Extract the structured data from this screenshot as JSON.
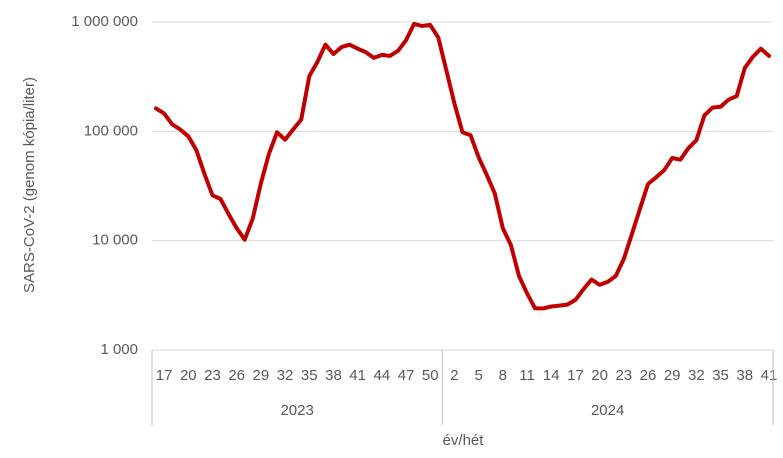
{
  "chart_data": {
    "type": "line",
    "y_label": "SARS-CoV-2 (genom kópia/liter)",
    "x_label": "év/hét",
    "y_scale": "log",
    "grid": true,
    "color": "#c00000",
    "ylim": [
      1000,
      1000000
    ],
    "yticks": [
      {
        "value": 1000,
        "label": "1 000"
      },
      {
        "value": 10000,
        "label": "10 000"
      },
      {
        "value": 100000,
        "label": "100 000"
      },
      {
        "value": 1000000,
        "label": "1 000 000"
      }
    ],
    "x_groups": [
      {
        "label": "2023",
        "size": 36
      },
      {
        "label": "2024",
        "size": 41
      }
    ],
    "categories": [
      null,
      "17",
      null,
      null,
      "20",
      null,
      null,
      "23",
      null,
      null,
      "26",
      null,
      null,
      "29",
      null,
      null,
      "32",
      null,
      null,
      "35",
      null,
      null,
      "38",
      null,
      null,
      "41",
      null,
      null,
      "44",
      null,
      null,
      "47",
      null,
      null,
      "50",
      null,
      null,
      "2",
      null,
      null,
      "5",
      null,
      null,
      "8",
      null,
      null,
      "11",
      null,
      null,
      "14",
      null,
      null,
      "17",
      null,
      null,
      "20",
      null,
      null,
      "23",
      null,
      null,
      "26",
      null,
      null,
      "29",
      null,
      null,
      "32",
      null,
      null,
      "35",
      null,
      null,
      "38",
      null,
      null,
      "41"
    ],
    "values": [
      162000,
      146000,
      116000,
      104000,
      90000,
      67000,
      41000,
      26000,
      24000,
      17500,
      13000,
      10200,
      16000,
      33500,
      62000,
      98000,
      84000,
      104000,
      128000,
      320000,
      430000,
      620000,
      510000,
      590000,
      620000,
      570000,
      530000,
      470000,
      500000,
      490000,
      545000,
      680000,
      960000,
      920000,
      940000,
      720000,
      360000,
      180000,
      98000,
      92000,
      58000,
      40000,
      27000,
      13000,
      9100,
      4750,
      3300,
      2400,
      2400,
      2500,
      2550,
      2600,
      2870,
      3600,
      4400,
      3950,
      4200,
      4750,
      6800,
      11500,
      19500,
      33000,
      38000,
      44000,
      57000,
      55000,
      70000,
      83000,
      140000,
      165000,
      168000,
      195000,
      210000,
      380000,
      480000,
      570000,
      490000
    ]
  }
}
